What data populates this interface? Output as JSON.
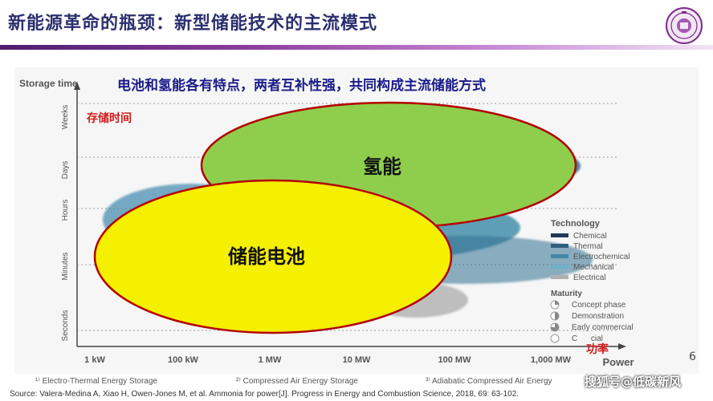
{
  "header": {
    "title": "新能源革命的瓶颈：新型储能技术的主流模式"
  },
  "chart": {
    "headline": "电池和氢能各有特点，两者互补性强，共同构成主流储能方式",
    "y_axis_title": "Storage time",
    "y_axis_title_cn": "存储时间",
    "y_ticks": [
      "Weeks",
      "Days",
      "Hours",
      "Minutes",
      "Seconds"
    ],
    "x_ticks": [
      "1 kW",
      "100 kW",
      "1 MW",
      "10 MW",
      "100 MW",
      "1,000 MW"
    ],
    "x_axis_title": "Power",
    "x_axis_title_cn": "功率",
    "hydrogen_label": "氢能",
    "battery_label": "储能电池",
    "legend": {
      "technology_title": "Technology",
      "technology_items": [
        {
          "label": "Chemical",
          "color": "#1f3b57"
        },
        {
          "label": "Thermal",
          "color": "#2f5f7f"
        },
        {
          "label": "Electrochemical",
          "color": "#3f8aa8"
        },
        {
          "label": "Mechanical",
          "color": "#6fb0c8"
        },
        {
          "label": "Electrical",
          "color": "#b0b0b0"
        }
      ],
      "maturity_title": "Maturity",
      "maturity_items": [
        {
          "label": "Concept phase",
          "icon": "quarter-filled-circle"
        },
        {
          "label": "Demonstration",
          "icon": "half-filled-circle"
        },
        {
          "label": "Early commercial",
          "icon": "three-quarter-circle"
        },
        {
          "label": "C      cial",
          "icon": "empty-circle"
        }
      ]
    }
  },
  "footnotes": [
    "¹⁾ Electro-Thermal Energy Storage",
    "²⁾ Compressed Air Energy Storage",
    "³⁾ Adiabatic Compressed Air Energy"
  ],
  "source": "Source:  Valera-Medina A, Xiao H, Owen-Jones M, et al. Ammonia for power[J]. Progress in Energy and Combustion Science, 2018, 69: 63-102.",
  "page_number": "6",
  "watermark": "搜狐号@低碳新风"
}
